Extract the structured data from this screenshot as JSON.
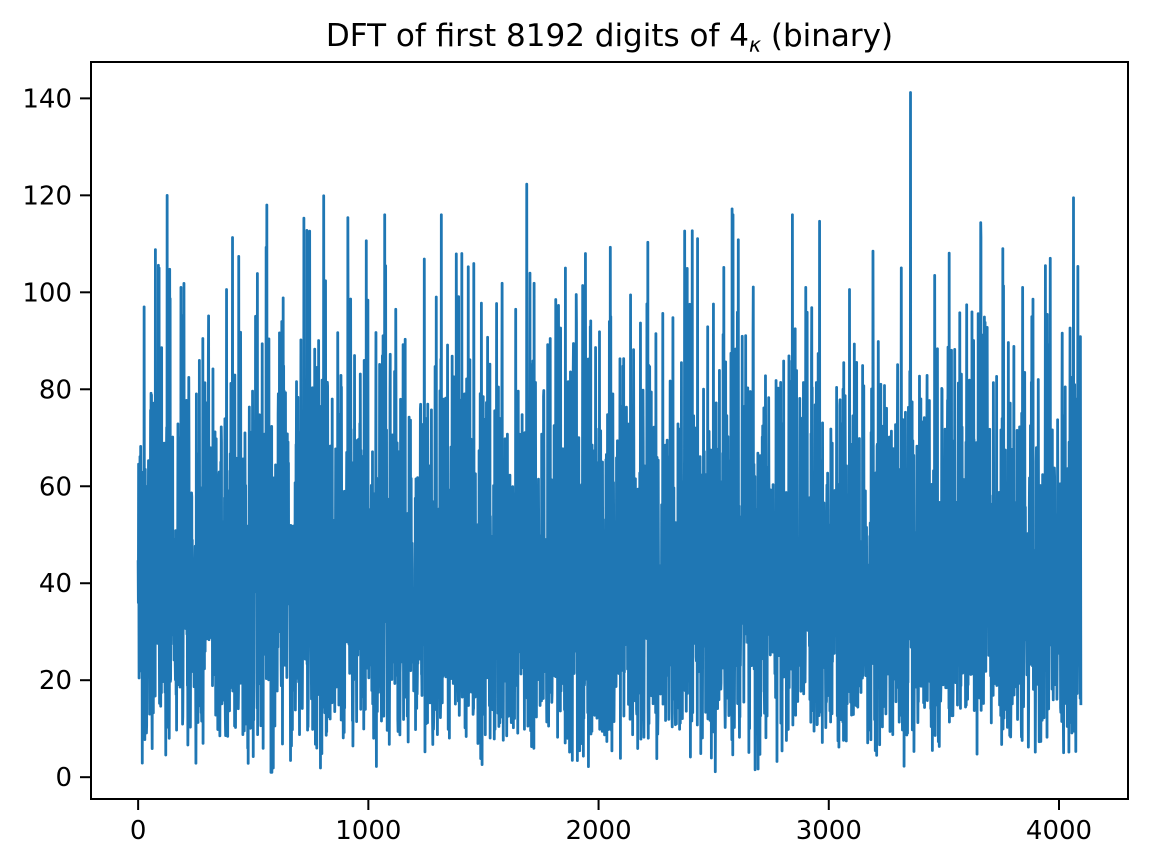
{
  "figure": {
    "title": {
      "prefix": "DFT of first 8192 digits of 4",
      "subscript": "κ",
      "suffix": " (binary)"
    }
  },
  "chart_data": {
    "type": "line",
    "title": "DFT of first 8192 digits of 4κ (binary)",
    "xlabel": "",
    "ylabel": "",
    "legend": null,
    "grid": false,
    "background": "#ffffff",
    "line_color": "#1f77b4",
    "spine_color": "#000000",
    "tick_color": "#000000",
    "text_color": "#000000",
    "n_points": 4096,
    "x_range": [
      0,
      4095
    ],
    "xlim": [
      -204.75,
      4299.75
    ],
    "ylim": [
      -4.5,
      147.5
    ],
    "x_ticks": [
      0,
      1000,
      2000,
      3000,
      4000
    ],
    "y_ticks": [
      0,
      20,
      40,
      60,
      80,
      100,
      120,
      140
    ],
    "series_description": "Magnitude spectrum (DFT) of the first 8192 binary digits of 4-kappa; Rayleigh-distributed noise-like magnitudes between about 1 and 141 with mean near 42",
    "noise": {
      "distribution": "rayleigh",
      "sigma": 33,
      "clamp_min": 1.0,
      "clamp_max": 116,
      "seed": 42
    },
    "peaks": [
      [
        26,
        97.0
      ],
      [
        91,
        105.0
      ],
      [
        126,
        120.0
      ],
      [
        186,
        101.0
      ],
      [
        410,
        111.3
      ],
      [
        559,
        118.0
      ],
      [
        720,
        115.3
      ],
      [
        806,
        119.9
      ],
      [
        911,
        115.4
      ],
      [
        1119,
        96.5
      ],
      [
        1406,
        108.0
      ],
      [
        1688,
        122.3
      ],
      [
        1856,
        105.0
      ],
      [
        1943,
        108.0
      ],
      [
        2051,
        109.3
      ],
      [
        2407,
        112.7
      ],
      [
        2580,
        117.2
      ],
      [
        2900,
        101.0
      ],
      [
        3192,
        108.5
      ],
      [
        3355,
        141.2
      ],
      [
        3460,
        103.5
      ],
      [
        3756,
        109.0
      ],
      [
        3842,
        101.0
      ],
      [
        3941,
        105.5
      ],
      [
        4063,
        119.5
      ]
    ]
  }
}
